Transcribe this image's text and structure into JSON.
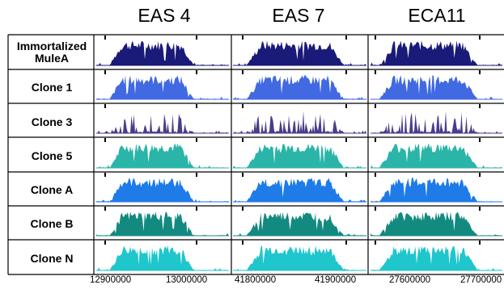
{
  "columns": [
    "EAS 4",
    "EAS 7",
    "ECA11"
  ],
  "rows": [
    {
      "label": "Immortalized MuleA",
      "color": "#1a1a78",
      "style": "dense"
    },
    {
      "label": "Clone 1",
      "color": "#4169e1",
      "style": "dense"
    },
    {
      "label": "Clone 3",
      "color": "#483d8b",
      "style": "sparse"
    },
    {
      "label": "Clone 5",
      "color": "#2ab5a8",
      "style": "dense"
    },
    {
      "label": "Clone A",
      "color": "#1e7be8",
      "style": "dense"
    },
    {
      "label": "Clone B",
      "color": "#138a80",
      "style": "dense"
    },
    {
      "label": "Clone N",
      "color": "#1fc6cc",
      "style": "dense"
    }
  ],
  "axis_labels": [
    [
      "12900000",
      "13000000"
    ],
    [
      "41800000",
      "41900000"
    ],
    [
      "27600000",
      "27700000"
    ]
  ]
}
